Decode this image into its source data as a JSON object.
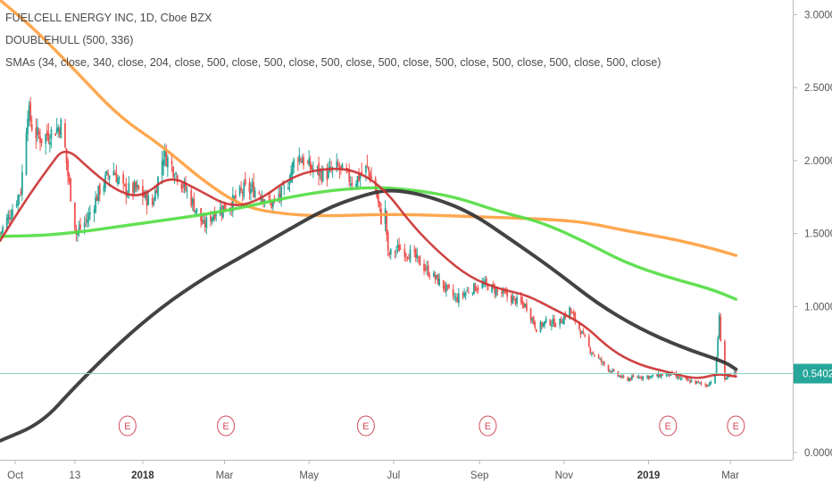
{
  "legend": {
    "title": "FUELCELL ENERGY INC, 1D, Cboe BZX",
    "indicator1": "DOUBLEHULL (500, 336)",
    "indicator2": "SMAs (34, close, 340, close, 204, close, 500, close, 500, close, 500, close, 500, close, 500, close, 500, close, 500, close, 500, close)"
  },
  "colors": {
    "background": "#ffffff",
    "candle_up": "#26a69a",
    "candle_down": "#ef5350",
    "sma_fast": "#cc3333",
    "sma_204": "#55dd44",
    "sma_340": "#ffa040",
    "hull": "#333333",
    "price_line": "#88d8c0",
    "price_tag": "#26a69a",
    "earnings": "#d24b5a",
    "axis_line": "#b8b8b8",
    "tick_text": "#555555"
  },
  "last_price_label": "0.5402",
  "chart_data": {
    "type": "candlestick",
    "title": "FUELCELL ENERGY INC, 1D, Cboe BZX",
    "ylim": [
      -0.05,
      3.1
    ],
    "yticks": [
      0.0,
      0.5,
      1.0,
      1.5,
      2.0,
      2.5,
      3.0
    ],
    "ytick_labels": [
      "0.0000",
      "0.5000",
      "1.0000",
      "1.5000",
      "2.0000",
      "2.5000",
      "3.0000"
    ],
    "x_domain_days": [
      "2017-09-20",
      "2019-04-15"
    ],
    "xticks": [
      {
        "date": "2017-10-01",
        "label": "Oct",
        "bold": false
      },
      {
        "date": "2017-11-13",
        "label": "13",
        "bold": false
      },
      {
        "date": "2018-01-01",
        "label": "2018",
        "bold": true
      },
      {
        "date": "2018-03-01",
        "label": "Mar",
        "bold": false
      },
      {
        "date": "2018-05-01",
        "label": "May",
        "bold": false
      },
      {
        "date": "2018-07-01",
        "label": "Jul",
        "bold": false
      },
      {
        "date": "2018-09-01",
        "label": "Sep",
        "bold": false
      },
      {
        "date": "2018-11-01",
        "label": "Nov",
        "bold": false
      },
      {
        "date": "2019-01-01",
        "label": "2019",
        "bold": true
      },
      {
        "date": "2019-03-01",
        "label": "Mar",
        "bold": false
      }
    ],
    "close_path": [
      [
        "2017-09-20",
        1.5
      ],
      [
        "2017-09-28",
        1.65
      ],
      [
        "2017-10-05",
        1.8
      ],
      [
        "2017-10-10",
        2.35
      ],
      [
        "2017-10-14",
        2.2
      ],
      [
        "2017-10-20",
        2.15
      ],
      [
        "2017-10-28",
        2.2
      ],
      [
        "2017-11-04",
        2.25
      ],
      [
        "2017-11-08",
        1.9
      ],
      [
        "2017-11-14",
        1.5
      ],
      [
        "2017-11-22",
        1.6
      ],
      [
        "2017-12-01",
        1.8
      ],
      [
        "2017-12-10",
        1.95
      ],
      [
        "2017-12-18",
        1.8
      ],
      [
        "2017-12-28",
        1.8
      ],
      [
        "2018-01-08",
        1.7
      ],
      [
        "2018-01-16",
        2.05
      ],
      [
        "2018-01-26",
        1.9
      ],
      [
        "2018-02-04",
        1.75
      ],
      [
        "2018-02-14",
        1.55
      ],
      [
        "2018-02-22",
        1.65
      ],
      [
        "2018-03-05",
        1.7
      ],
      [
        "2018-03-15",
        1.8
      ],
      [
        "2018-03-25",
        1.8
      ],
      [
        "2018-04-04",
        1.7
      ],
      [
        "2018-04-14",
        1.8
      ],
      [
        "2018-04-22",
        2.05
      ],
      [
        "2018-05-02",
        1.95
      ],
      [
        "2018-05-12",
        1.9
      ],
      [
        "2018-05-22",
        1.95
      ],
      [
        "2018-06-02",
        1.85
      ],
      [
        "2018-06-12",
        1.95
      ],
      [
        "2018-06-18",
        1.8
      ],
      [
        "2018-06-22",
        1.6
      ],
      [
        "2018-06-25",
        1.65
      ],
      [
        "2018-06-27",
        1.35
      ],
      [
        "2018-07-05",
        1.4
      ],
      [
        "2018-07-15",
        1.35
      ],
      [
        "2018-07-25",
        1.25
      ],
      [
        "2018-08-05",
        1.15
      ],
      [
        "2018-08-15",
        1.05
      ],
      [
        "2018-08-25",
        1.12
      ],
      [
        "2018-09-05",
        1.15
      ],
      [
        "2018-09-15",
        1.1
      ],
      [
        "2018-09-25",
        1.05
      ],
      [
        "2018-10-05",
        1.0
      ],
      [
        "2018-10-12",
        0.85
      ],
      [
        "2018-10-20",
        0.9
      ],
      [
        "2018-10-28",
        0.88
      ],
      [
        "2018-11-05",
        0.98
      ],
      [
        "2018-11-12",
        0.85
      ],
      [
        "2018-11-20",
        0.7
      ],
      [
        "2018-11-28",
        0.62
      ],
      [
        "2018-12-06",
        0.55
      ],
      [
        "2018-12-15",
        0.5
      ],
      [
        "2018-12-25",
        0.52
      ],
      [
        "2019-01-05",
        0.52
      ],
      [
        "2019-01-15",
        0.54
      ],
      [
        "2019-01-25",
        0.5
      ],
      [
        "2019-02-04",
        0.48
      ],
      [
        "2019-02-12",
        0.46
      ],
      [
        "2019-02-18",
        0.52
      ],
      [
        "2019-02-21",
        0.92
      ],
      [
        "2019-02-24",
        0.5
      ],
      [
        "2019-02-28",
        0.52
      ],
      [
        "2019-03-05",
        0.54
      ]
    ],
    "series": [
      {
        "name": "SMA 34",
        "color_key": "sma_fast",
        "points": [
          [
            "2017-09-20",
            1.45
          ],
          [
            "2017-10-10",
            1.75
          ],
          [
            "2017-10-25",
            1.95
          ],
          [
            "2017-11-06",
            2.1
          ],
          [
            "2017-11-25",
            1.93
          ],
          [
            "2017-12-15",
            1.78
          ],
          [
            "2018-01-01",
            1.75
          ],
          [
            "2018-01-20",
            1.9
          ],
          [
            "2018-02-10",
            1.8
          ],
          [
            "2018-03-05",
            1.68
          ],
          [
            "2018-03-25",
            1.72
          ],
          [
            "2018-04-20",
            1.9
          ],
          [
            "2018-05-15",
            1.95
          ],
          [
            "2018-06-05",
            1.93
          ],
          [
            "2018-06-25",
            1.8
          ],
          [
            "2018-07-15",
            1.55
          ],
          [
            "2018-08-05",
            1.35
          ],
          [
            "2018-08-25",
            1.2
          ],
          [
            "2018-09-15",
            1.12
          ],
          [
            "2018-10-05",
            1.08
          ],
          [
            "2018-10-25",
            0.98
          ],
          [
            "2018-11-15",
            0.88
          ],
          [
            "2018-12-05",
            0.7
          ],
          [
            "2018-12-25",
            0.6
          ],
          [
            "2019-01-15",
            0.55
          ],
          [
            "2019-02-05",
            0.5
          ],
          [
            "2019-02-20",
            0.54
          ],
          [
            "2019-03-05",
            0.52
          ]
        ]
      },
      {
        "name": "SMA 204",
        "color_key": "sma_204",
        "points": [
          [
            "2017-09-20",
            1.48
          ],
          [
            "2017-11-01",
            1.49
          ],
          [
            "2018-01-01",
            1.57
          ],
          [
            "2018-03-01",
            1.65
          ],
          [
            "2018-05-01",
            1.78
          ],
          [
            "2018-06-15",
            1.82
          ],
          [
            "2018-07-15",
            1.8
          ],
          [
            "2018-08-15",
            1.75
          ],
          [
            "2018-09-15",
            1.65
          ],
          [
            "2018-10-15",
            1.58
          ],
          [
            "2018-11-15",
            1.45
          ],
          [
            "2018-12-15",
            1.3
          ],
          [
            "2019-01-15",
            1.2
          ],
          [
            "2019-02-15",
            1.12
          ],
          [
            "2019-03-05",
            1.05
          ]
        ]
      },
      {
        "name": "SMA 340",
        "color_key": "sma_340",
        "points": [
          [
            "2017-09-20",
            3.1
          ],
          [
            "2017-10-15",
            2.9
          ],
          [
            "2017-11-15",
            2.6
          ],
          [
            "2017-12-15",
            2.3
          ],
          [
            "2018-01-15",
            2.1
          ],
          [
            "2018-02-15",
            1.85
          ],
          [
            "2018-03-15",
            1.68
          ],
          [
            "2018-04-15",
            1.63
          ],
          [
            "2018-05-15",
            1.62
          ],
          [
            "2018-06-15",
            1.63
          ],
          [
            "2018-07-15",
            1.63
          ],
          [
            "2018-08-15",
            1.62
          ],
          [
            "2018-09-15",
            1.61
          ],
          [
            "2018-10-15",
            1.6
          ],
          [
            "2018-11-15",
            1.58
          ],
          [
            "2018-12-15",
            1.52
          ],
          [
            "2019-01-15",
            1.47
          ],
          [
            "2019-02-15",
            1.4
          ],
          [
            "2019-03-05",
            1.35
          ]
        ]
      },
      {
        "name": "DOUBLEHULL",
        "color_key": "hull",
        "points": [
          [
            "2017-09-20",
            0.08
          ],
          [
            "2017-10-20",
            0.2
          ],
          [
            "2017-11-13",
            0.45
          ],
          [
            "2017-12-15",
            0.75
          ],
          [
            "2018-01-15",
            1.0
          ],
          [
            "2018-02-15",
            1.2
          ],
          [
            "2018-03-15",
            1.35
          ],
          [
            "2018-04-15",
            1.52
          ],
          [
            "2018-05-15",
            1.68
          ],
          [
            "2018-06-15",
            1.78
          ],
          [
            "2018-07-01",
            1.8
          ],
          [
            "2018-07-25",
            1.76
          ],
          [
            "2018-08-25",
            1.65
          ],
          [
            "2018-09-25",
            1.45
          ],
          [
            "2018-10-25",
            1.25
          ],
          [
            "2018-11-25",
            1.02
          ],
          [
            "2018-12-25",
            0.85
          ],
          [
            "2019-01-25",
            0.72
          ],
          [
            "2019-02-25",
            0.62
          ],
          [
            "2019-03-05",
            0.57
          ]
        ]
      }
    ],
    "last_price": 0.5402,
    "earnings": [
      {
        "date": "2017-12-21",
        "label": "E"
      },
      {
        "date": "2018-03-02",
        "label": "E"
      },
      {
        "date": "2018-06-11",
        "label": "E"
      },
      {
        "date": "2018-09-07",
        "label": "E"
      },
      {
        "date": "2019-01-15",
        "label": "E"
      },
      {
        "date": "2019-03-05",
        "label": "E"
      }
    ]
  }
}
